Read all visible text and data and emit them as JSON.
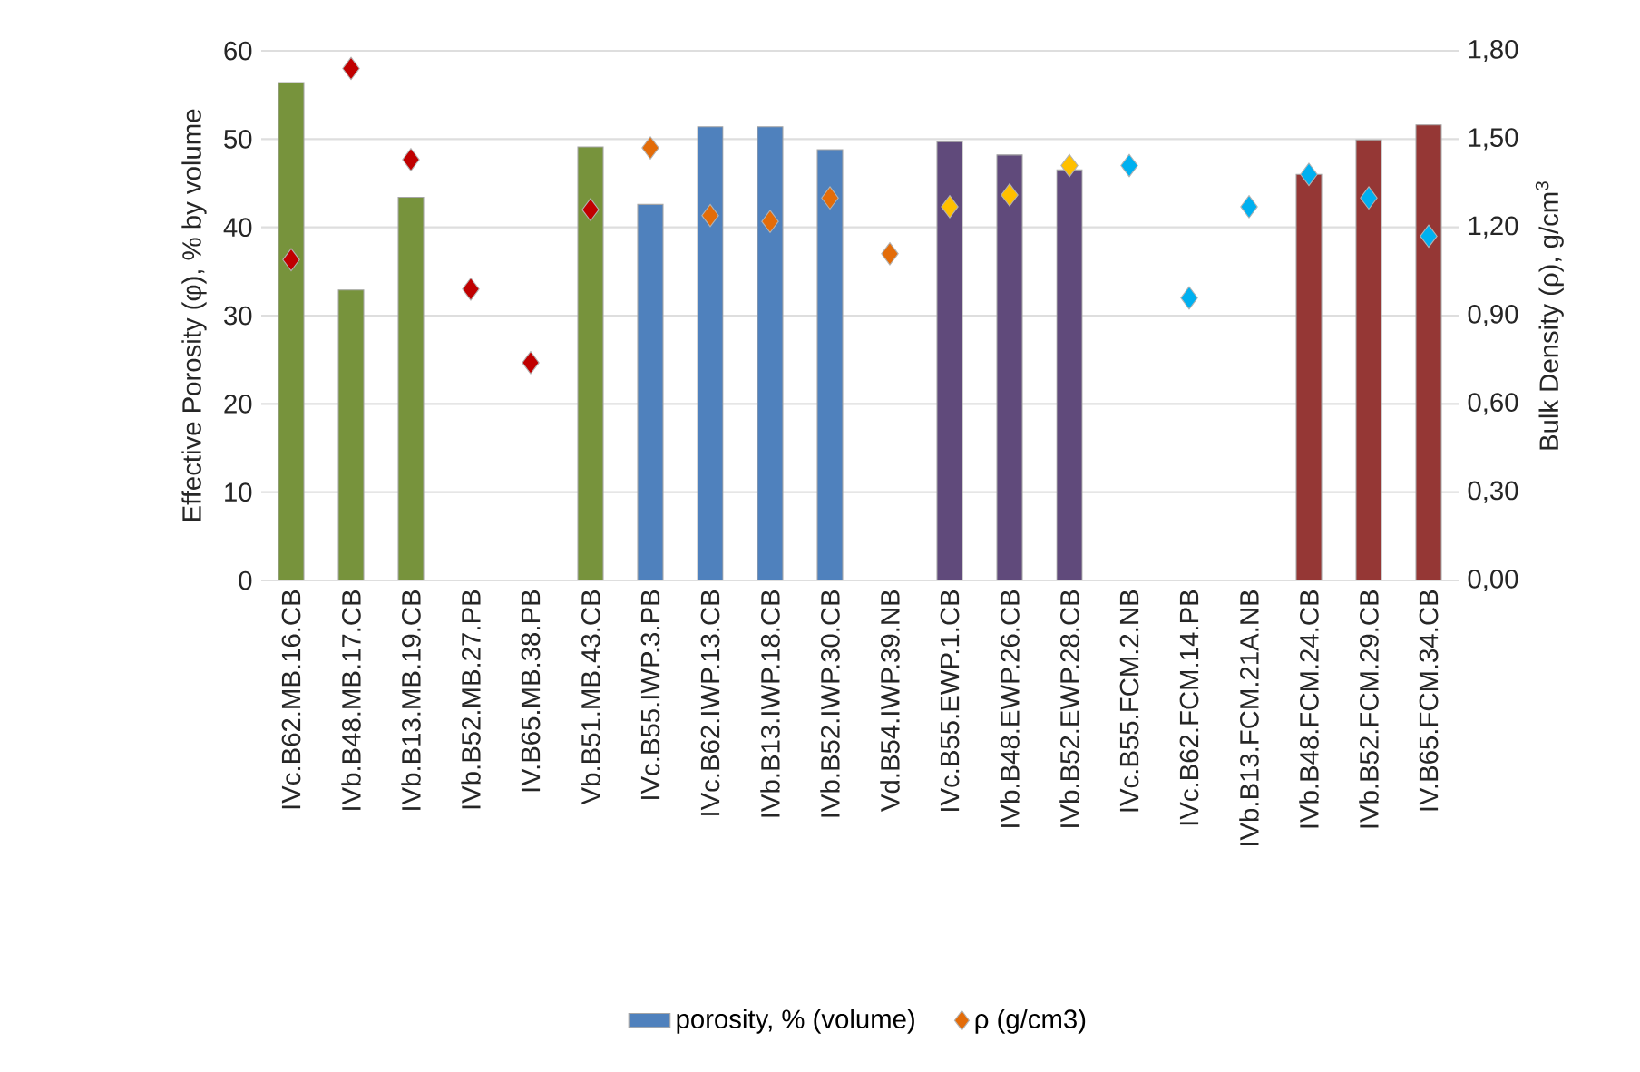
{
  "chart_data": {
    "type": "bar",
    "ylabel": "Effective Porosity (φ), % by volume",
    "y2label": "Bulk Density (ρ), g/cm$^{3}$",
    "categories": [
      "IVc.B62.MB.16.CB",
      "IVb.B48.MB.17.CB",
      "IVb.B13.MB.19.CB",
      "IVb.B52.MB.27.PB",
      "IV.B65.MB.38.PB",
      "Vb.B51.MB.43.CB",
      "IVc.B55.IWP.3.PB",
      "IVc.B62.IWP.13.CB",
      "IVb.B13.IWP.18.CB",
      "IVb.B52.IWP.30.CB",
      "Vd.B54.IWP.39.NB",
      "IVc.B55.EWP.1.CB",
      "IVb.B48.EWP.26.CB",
      "IVb.B52.EWP.28.CB",
      "IVc.B55.FCM.2.NB",
      "IVc.B62.FCM.14.PB",
      "IVb.B13.FCM.21A.NB",
      "IVb.B48.FCM.24.CB",
      "IVb.B52.FCM.29.CB",
      "IV.B65.FCM.34.CB"
    ],
    "series": [
      {
        "name": "porosity, % (volume)",
        "color": "#4f81bd",
        "values": [
          56.4,
          32.9,
          43.4,
          null,
          null,
          49.1,
          42.6,
          51.4,
          51.4,
          48.8,
          null,
          49.7,
          48.2,
          46.5,
          null,
          null,
          null,
          46.0,
          49.9,
          51.6
        ],
        "colors": [
          "#77933c",
          "#77933c",
          "#77933c",
          null,
          null,
          "#77933c",
          "#4f81bd",
          "#4f81bd",
          "#4f81bd",
          "#4f81bd",
          null,
          "#604a7b",
          "#604a7b",
          "#604a7b",
          null,
          null,
          null,
          "#953735",
          "#953735",
          "#953735"
        ]
      },
      {
        "name": "ρ (g/cm3)",
        "type": "scatter",
        "axis": "y2",
        "marker": "diamond",
        "color": "#e36c09",
        "values": [
          1.09,
          1.74,
          1.43,
          0.99,
          0.74,
          1.26,
          1.47,
          1.24,
          1.22,
          1.3,
          1.11,
          1.27,
          1.31,
          1.41,
          1.41,
          0.96,
          1.27,
          1.38,
          1.3,
          1.17
        ],
        "colors": [
          "#c00000",
          "#c00000",
          "#c00000",
          "#c00000",
          "#c00000",
          "#c00000",
          "#e36c09",
          "#e36c09",
          "#e36c09",
          "#e36c09",
          "#e36c09",
          "#ffc000",
          "#ffc000",
          "#ffc000",
          "#00b0f0",
          "#00b0f0",
          "#00b0f0",
          "#00b0f0",
          "#00b0f0",
          "#00b0f0"
        ]
      }
    ],
    "ylim": [
      0,
      60
    ],
    "yticks": [
      0,
      10,
      20,
      30,
      40,
      50,
      60
    ],
    "y2lim": [
      0,
      1.8
    ],
    "y2ticks": [
      {
        "value": 0,
        "label": "0,00"
      },
      {
        "value": 0.3,
        "label": "0,30"
      },
      {
        "value": 0.6,
        "label": "0,60"
      },
      {
        "value": 0.9,
        "label": "0,90"
      },
      {
        "value": 1.2,
        "label": "1,20"
      },
      {
        "value": 1.5,
        "label": "1,50"
      },
      {
        "value": 1.8,
        "label": "1,80"
      }
    ],
    "grid": "y",
    "legend": "bottom"
  }
}
